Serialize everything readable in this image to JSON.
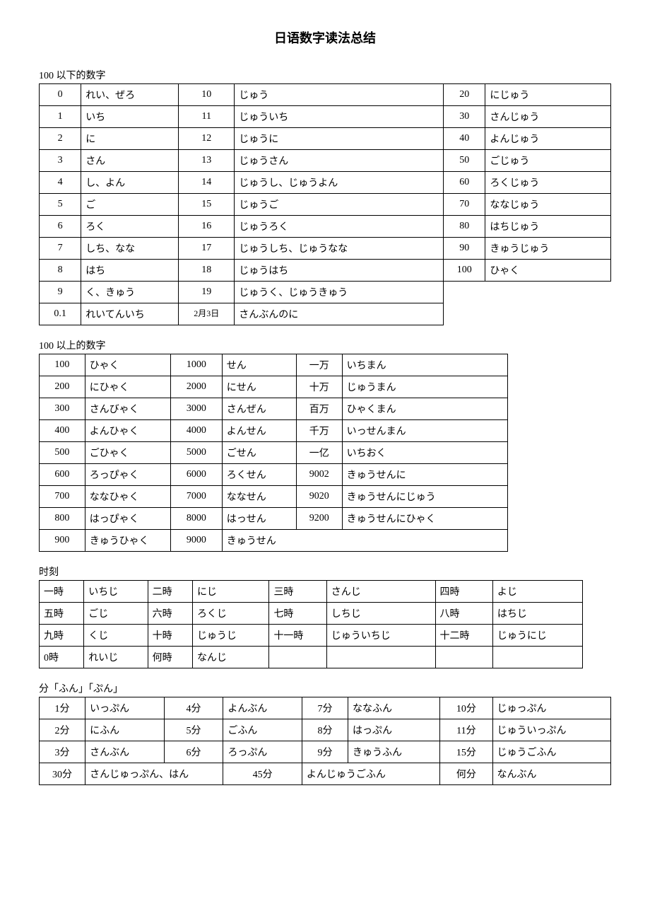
{
  "title": "日语数字读法总结",
  "sections": {
    "under100": {
      "label": "100 以下的数字",
      "rows": [
        [
          "0",
          "れい、ぜろ",
          "10",
          "じゅう",
          "20",
          "にじゅう"
        ],
        [
          "1",
          "いち",
          "11",
          "じゅういち",
          "30",
          "さんじゅう"
        ],
        [
          "2",
          "に",
          "12",
          "じゅうに",
          "40",
          "よんじゅう"
        ],
        [
          "3",
          "さん",
          "13",
          "じゅうさん",
          "50",
          "ごじゅう"
        ],
        [
          "4",
          "し、よん",
          "14",
          "じゅうし、じゅうよん",
          "60",
          "ろくじゅう"
        ],
        [
          "5",
          "ご",
          "15",
          "じゅうご",
          "70",
          "ななじゅう"
        ],
        [
          "6",
          "ろく",
          "16",
          "じゅうろく",
          "80",
          "はちじゅう"
        ],
        [
          "7",
          "しち、なな",
          "17",
          "じゅうしち、じゅうなな",
          "90",
          "きゅうじゅう"
        ],
        [
          "8",
          "はち",
          "18",
          "じゅうはち",
          "100",
          "ひゃく"
        ],
        [
          "9",
          "く、きゅう",
          "19",
          "じゅうく、じゅうきゅう"
        ],
        [
          "0.1",
          "れいてんいち",
          "2月3日",
          "さんぶんのに"
        ]
      ],
      "col_widths": [
        "6%",
        "14%",
        "8%",
        "30%",
        "6%",
        "18%"
      ]
    },
    "over100": {
      "label": "100 以上的数字",
      "rows": [
        [
          "100",
          "ひゃく",
          "1000",
          "せん",
          "一万",
          "いちまん"
        ],
        [
          "200",
          "にひゃく",
          "2000",
          "にせん",
          "十万",
          "じゅうまん"
        ],
        [
          "300",
          "さんびゃく",
          "3000",
          "さんぜん",
          "百万",
          "ひゃくまん"
        ],
        [
          "400",
          "よんひゃく",
          "4000",
          "よんせん",
          "千万",
          "いっせんまん"
        ],
        [
          "500",
          "ごひゃく",
          "5000",
          "ごせん",
          "一亿",
          "いちおく"
        ],
        [
          "600",
          "ろっぴゃく",
          "6000",
          "ろくせん",
          "9002",
          "きゅうせんに"
        ],
        [
          "700",
          "ななひゃく",
          "7000",
          "ななせん",
          "9020",
          "きゅうせんにじゅう"
        ],
        [
          "800",
          "はっぴゃく",
          "8000",
          "はっせん",
          "9200",
          "きゅうせんにひゃく"
        ],
        [
          "900",
          "きゅうひゃく",
          "9000",
          "きゅうせん"
        ]
      ],
      "col_widths": [
        "8%",
        "15%",
        "9%",
        "13%",
        "8%",
        "29%"
      ]
    },
    "time": {
      "label": "时刻",
      "rows": [
        [
          "一時",
          "いちじ",
          "二時",
          "にじ",
          "三時",
          "さんじ",
          "四時",
          "よじ"
        ],
        [
          "五時",
          "ごじ",
          "六時",
          "ろくじ",
          "七時",
          "しちじ",
          "八時",
          "はちじ"
        ],
        [
          "九時",
          "くじ",
          "十時",
          "じゅうじ",
          "十一時",
          "じゅういちじ",
          "十二時",
          "じゅうにじ"
        ],
        [
          "0時",
          "れいじ",
          "何時",
          "なんじ",
          "",
          "",
          "",
          ""
        ]
      ],
      "col_widths": [
        "7%",
        "10%",
        "7%",
        "12%",
        "9%",
        "17%",
        "9%",
        "14%"
      ]
    },
    "minutes": {
      "label": "分「ふん」「ぷん」",
      "rows": [
        [
          "1分",
          "いっぷん",
          "4分",
          "よんぶん",
          "7分",
          "ななふん",
          "10分",
          "じゅっぷん"
        ],
        [
          "2分",
          "にふん",
          "5分",
          "ごふん",
          "8分",
          "はっぷん",
          "11分",
          "じゅういっぷん"
        ],
        [
          "3分",
          "さんぶん",
          "6分",
          "ろっぷん",
          "9分",
          "きゅうふん",
          "15分",
          "じゅうごふん"
        ]
      ],
      "last_row": [
        "30分",
        "さんじゅっぷん、はん",
        "45分",
        "よんじゅうごふん",
        "何分",
        "なんぶん"
      ],
      "col_widths": [
        "7%",
        "12%",
        "9%",
        "12%",
        "7%",
        "14%",
        "8%",
        "18%"
      ]
    }
  }
}
